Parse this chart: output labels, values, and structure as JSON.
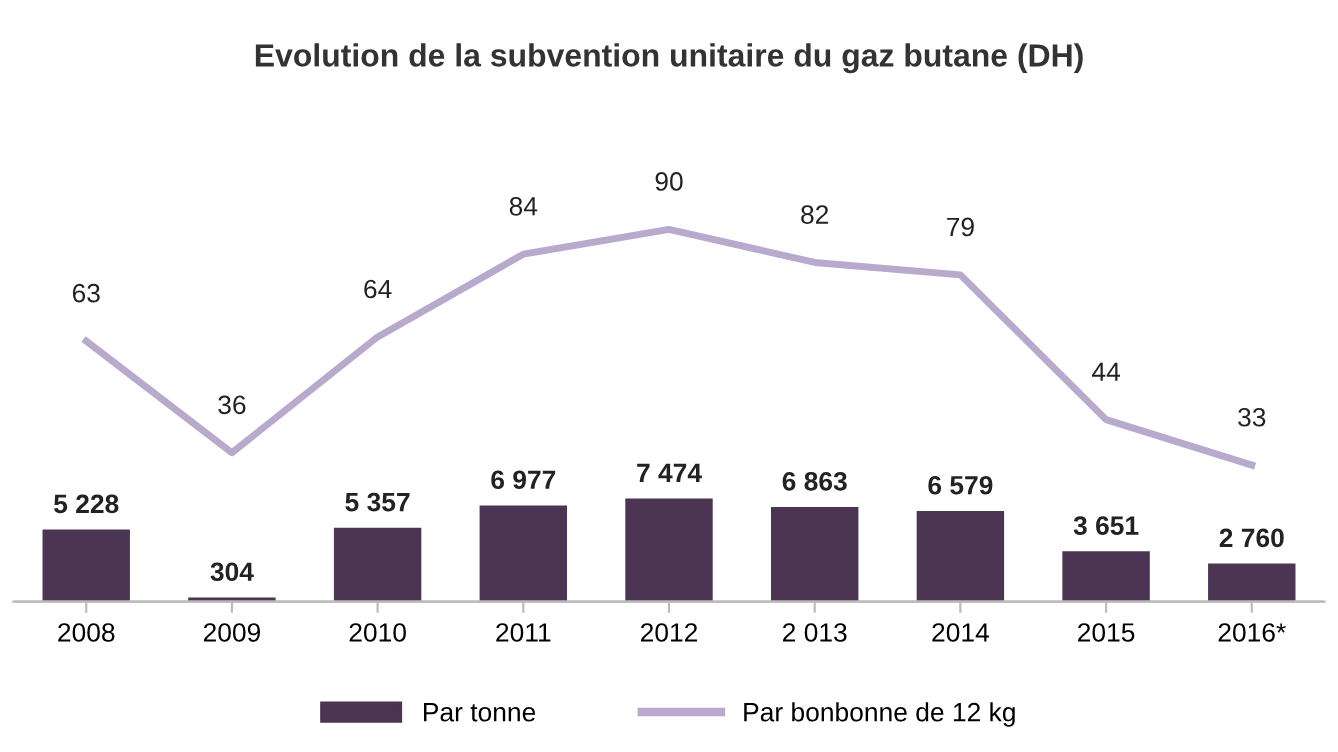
{
  "chart_data": {
    "type": "bar",
    "title": "Evolution de la subvention unitaire du gaz butane (DH)",
    "categories": [
      "2008",
      "2009",
      "2010",
      "2011",
      "2012",
      "2 013",
      "2014",
      "2015",
      "2016*"
    ],
    "series": [
      {
        "name": "Par tonne",
        "color": "#4b3553",
        "values": [
          5228,
          304,
          5357,
          6977,
          7474,
          6863,
          6579,
          3651,
          2760
        ],
        "value_labels": [
          "5 228",
          "304",
          "5 357",
          "6 977",
          "7 474",
          "6 863",
          "6 579",
          "3 651",
          "2 760"
        ]
      },
      {
        "name": "Par bonbonne de 12 kg",
        "type": "line",
        "axis": "y2",
        "color": "#b9a9cc",
        "values": [
          63,
          36,
          64,
          84,
          90,
          82,
          79,
          44,
          33
        ],
        "value_labels": [
          "63",
          "36",
          "64",
          "84",
          "90",
          "82",
          "79",
          "44",
          "33"
        ]
      }
    ],
    "ylim": [
      0,
      36000
    ],
    "y2lim": [
      0,
      120
    ],
    "tick_labels": "x",
    "legend": "bottom",
    "marker": "none",
    "line_style": "solid"
  }
}
